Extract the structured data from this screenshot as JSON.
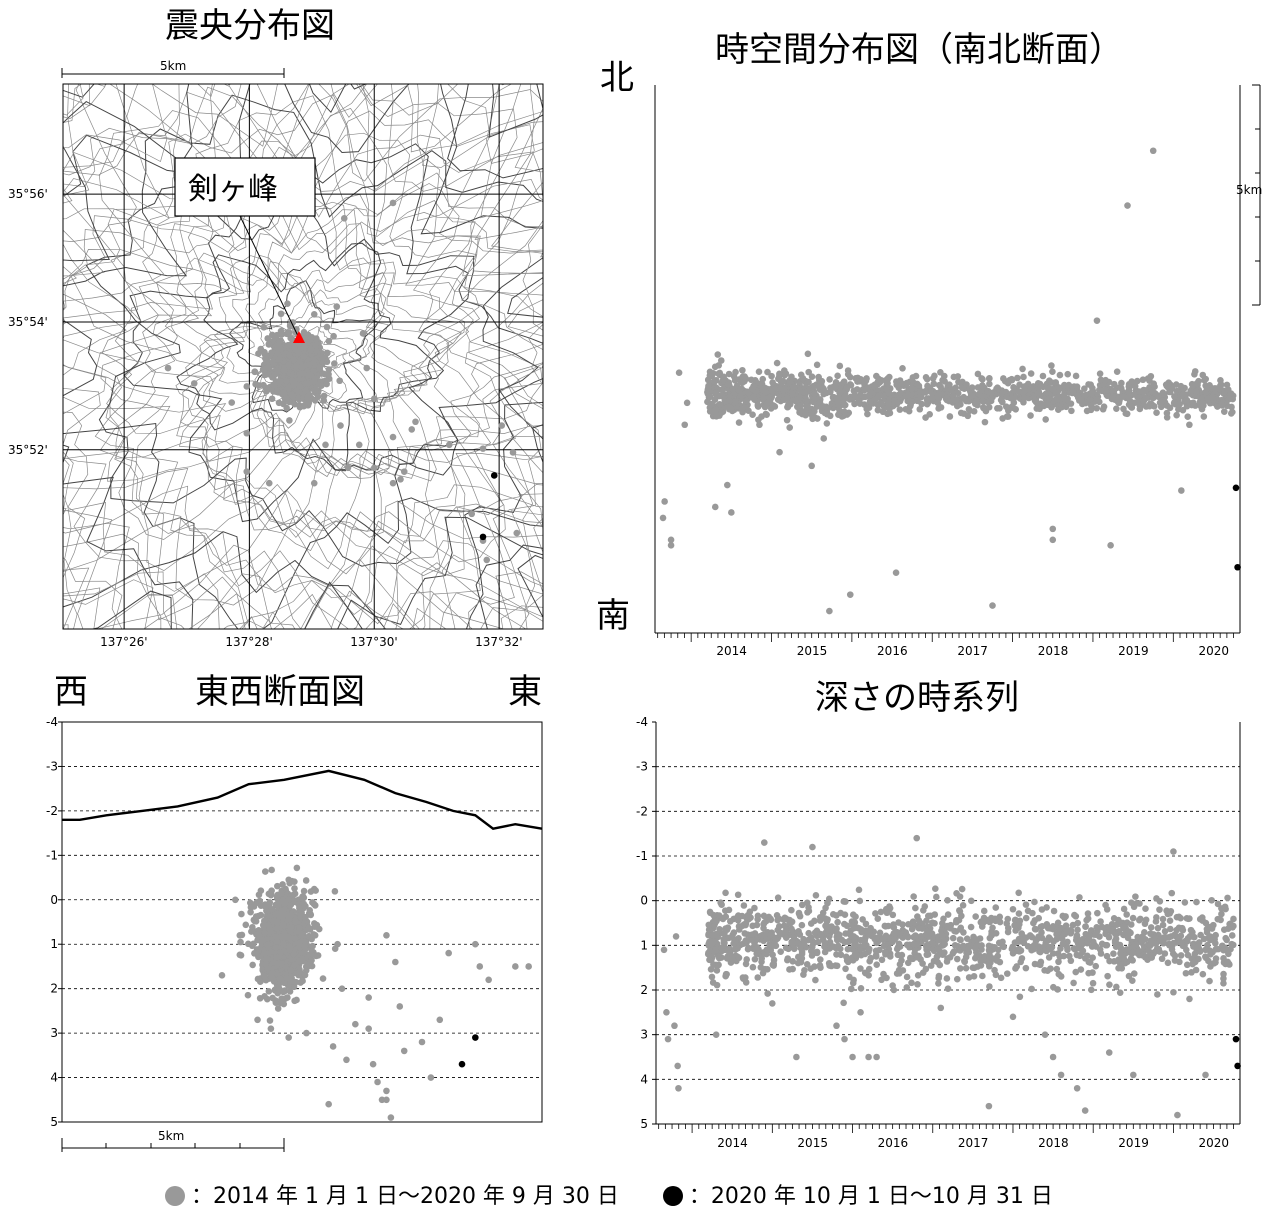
{
  "colors": {
    "gray_point": "#999999",
    "black_point": "#000000",
    "summit_marker": "#ff0000",
    "axis": "#000000"
  },
  "titles": {
    "map": "震央分布図",
    "timespace": "時空間分布図（南北断面）",
    "ew_section": "東西断面図",
    "depth_time": "深さの時系列"
  },
  "labels": {
    "north": "北",
    "south": "南",
    "west": "西",
    "east": "東",
    "summit": "剣ヶ峰",
    "scale": "5km"
  },
  "legend": {
    "gray_icon": "gray-circle",
    "gray_text": "：2014 年 1 月 1 日～2020 年 9 月 30 日",
    "black_icon": "black-circle",
    "black_text": "：2020 年 10 月 1 日～10 月 31 日"
  },
  "chart_data": [
    {
      "type": "scatter",
      "title": "震央分布図",
      "x_ticks": [
        "137°26'",
        "137°28'",
        "137°30'",
        "137°32'"
      ],
      "y_ticks": [
        "35°56'",
        "35°54'",
        "35°52'"
      ],
      "x_range": [
        137.417,
        137.545
      ],
      "y_range": [
        35.82,
        35.962
      ],
      "summit": {
        "label": "剣ヶ峰",
        "lon": 137.481,
        "lat": 35.892
      },
      "series": [
        {
          "name": "2014年1月1日～2020年9月30日",
          "cluster_center": [
            137.479,
            35.888
          ],
          "points": [
            [
              137.445,
              35.888
            ],
            [
              137.452,
              35.884
            ],
            [
              137.462,
              35.879
            ],
            [
              137.466,
              35.871
            ],
            [
              137.466,
              35.861
            ],
            [
              137.472,
              35.858
            ],
            [
              137.484,
              35.858
            ],
            [
              137.487,
              35.868
            ],
            [
              137.491,
              35.873
            ],
            [
              137.496,
              35.868
            ],
            [
              137.5,
              35.862
            ],
            [
              137.505,
              35.87
            ],
            [
              137.5,
              35.88
            ],
            [
              137.498,
              35.888
            ],
            [
              137.497,
              35.897
            ],
            [
              137.49,
              35.904
            ],
            [
              137.484,
              35.902
            ],
            [
              137.492,
              35.927
            ],
            [
              137.505,
              35.931
            ],
            [
              137.493,
              35.862
            ],
            [
              137.505,
              35.858
            ],
            [
              137.508,
              35.861
            ],
            [
              137.51,
              35.872
            ],
            [
              137.52,
              35.868
            ],
            [
              137.534,
              35.873
            ],
            [
              137.537,
              35.866
            ],
            [
              137.529,
              35.867
            ],
            [
              137.526,
              35.85
            ],
            [
              137.529,
              35.843
            ],
            [
              137.538,
              35.845
            ],
            [
              137.53,
              35.838
            ],
            [
              137.511,
              35.874
            ],
            [
              137.507,
              35.859
            ]
          ]
        },
        {
          "name": "2020年10月1日～10月31日",
          "points": [
            [
              137.532,
              35.86
            ],
            [
              137.529,
              35.844
            ]
          ]
        }
      ]
    },
    {
      "type": "scatter",
      "title": "時空間分布図（南北断面）",
      "x_ticks": [
        "2014",
        "2015",
        "2016",
        "2017",
        "2018",
        "2019",
        "2020"
      ],
      "x_range": [
        2013.55,
        2020.83
      ],
      "ylabel_top": "北",
      "ylabel_bottom": "南",
      "series": [
        {
          "name": "2014年1月1日～2020年9月30日",
          "main_band": {
            "x": [
              2014.2,
              2020.75
            ],
            "y_center": 0.565
          },
          "points": [
            [
              2013.85,
              0.525
            ],
            [
              2013.95,
              0.58
            ],
            [
              2013.92,
              0.62
            ],
            [
              2013.65,
              0.79
            ],
            [
              2013.67,
              0.76
            ],
            [
              2013.75,
              0.84
            ],
            [
              2013.75,
              0.83
            ],
            [
              2014.3,
              0.77
            ],
            [
              2014.45,
              0.73
            ],
            [
              2014.5,
              0.78
            ],
            [
              2014.85,
              0.62
            ],
            [
              2015.1,
              0.67
            ],
            [
              2015.5,
              0.695
            ],
            [
              2015.65,
              0.645
            ],
            [
              2015.72,
              0.96
            ],
            [
              2015.98,
              0.93
            ],
            [
              2016.55,
              0.89
            ],
            [
              2017.75,
              0.95
            ],
            [
              2018.5,
              0.81
            ],
            [
              2018.5,
              0.83
            ],
            [
              2019.22,
              0.84
            ],
            [
              2019.05,
              0.43
            ],
            [
              2019.75,
              0.12
            ],
            [
              2019.43,
              0.22
            ],
            [
              2020.1,
              0.74
            ],
            [
              2020.2,
              0.62
            ],
            [
              2020.25,
              0.58
            ],
            [
              2020.38,
              0.605
            ]
          ]
        },
        {
          "name": "2020年10月1日～10月31日",
          "points": [
            [
              2020.78,
              0.735
            ],
            [
              2020.8,
              0.88
            ]
          ]
        }
      ]
    },
    {
      "type": "scatter",
      "title": "東西断面図",
      "y_ticks": [
        "-4",
        "-3",
        "-2",
        "-1",
        "0",
        "1",
        "2",
        "3",
        "4",
        "5"
      ],
      "y_range": [
        -4,
        5
      ],
      "x_range_km": [
        0,
        10.8
      ],
      "topography_elevation_km": [
        [
          0,
          -1.8
        ],
        [
          0.4,
          -1.8
        ],
        [
          1.0,
          -1.9
        ],
        [
          1.8,
          -2.0
        ],
        [
          2.6,
          -2.1
        ],
        [
          3.5,
          -2.3
        ],
        [
          4.2,
          -2.6
        ],
        [
          5.0,
          -2.7
        ],
        [
          6.0,
          -2.9
        ],
        [
          6.8,
          -2.7
        ],
        [
          7.5,
          -2.4
        ],
        [
          8.2,
          -2.2
        ],
        [
          8.8,
          -2.0
        ],
        [
          9.3,
          -1.9
        ],
        [
          9.7,
          -1.6
        ],
        [
          10.2,
          -1.7
        ],
        [
          10.8,
          -1.6
        ]
      ],
      "series": [
        {
          "name": "2014年1月1日～2020年9月30日",
          "cluster_center": [
            5.0,
            0.9
          ],
          "points": [
            [
              3.6,
              1.7
            ],
            [
              3.9,
              0.0
            ],
            [
              4.0,
              0.8
            ],
            [
              4.4,
              2.7
            ],
            [
              4.7,
              2.9
            ],
            [
              5.1,
              3.1
            ],
            [
              5.5,
              3.0
            ],
            [
              6.2,
              1.0
            ],
            [
              6.3,
              2.0
            ],
            [
              6.1,
              3.3
            ],
            [
              6.4,
              3.6
            ],
            [
              6.6,
              2.8
            ],
            [
              6.9,
              2.9
            ],
            [
              6.9,
              2.2
            ],
            [
              7.3,
              0.8
            ],
            [
              7.1,
              4.1
            ],
            [
              7.2,
              4.5
            ],
            [
              7.3,
              4.5
            ],
            [
              7.5,
              1.4
            ],
            [
              7.6,
              2.4
            ],
            [
              7.7,
              3.4
            ],
            [
              8.1,
              3.2
            ],
            [
              8.3,
              4.0
            ],
            [
              8.5,
              2.7
            ],
            [
              8.7,
              1.2
            ],
            [
              9.3,
              1.0
            ],
            [
              9.4,
              1.5
            ],
            [
              9.6,
              1.8
            ],
            [
              10.2,
              1.5
            ],
            [
              10.5,
              1.5
            ],
            [
              6.0,
              4.6
            ],
            [
              7.0,
              3.7
            ],
            [
              7.3,
              4.3
            ],
            [
              7.4,
              4.9
            ]
          ]
        },
        {
          "name": "2020年10月1日～10月31日",
          "points": [
            [
              9.3,
              3.1
            ],
            [
              9.0,
              3.7
            ]
          ]
        }
      ]
    },
    {
      "type": "scatter",
      "title": "深さの時系列",
      "x_ticks": [
        "2014",
        "2015",
        "2016",
        "2017",
        "2018",
        "2019",
        "2020"
      ],
      "y_ticks": [
        "-4",
        "-3",
        "-2",
        "-1",
        "0",
        "1",
        "2",
        "3",
        "4",
        "5"
      ],
      "x_range": [
        2013.55,
        2020.83
      ],
      "y_range": [
        -4,
        5
      ],
      "series": [
        {
          "name": "2014年1月1日～2020年9月30日",
          "main_band": {
            "x": [
              2014.2,
              2020.75
            ],
            "y_center": 0.9
          },
          "points": [
            [
              2013.65,
              1.1
            ],
            [
              2013.68,
              2.5
            ],
            [
              2013.7,
              3.1
            ],
            [
              2013.78,
              2.8
            ],
            [
              2013.82,
              3.7
            ],
            [
              2013.83,
              4.2
            ],
            [
              2013.8,
              0.8
            ],
            [
              2014.3,
              3.0
            ],
            [
              2014.5,
              1.3
            ],
            [
              2014.9,
              -1.3
            ],
            [
              2015.0,
              2.3
            ],
            [
              2015.3,
              3.5
            ],
            [
              2015.5,
              -1.2
            ],
            [
              2015.6,
              1.5
            ],
            [
              2015.8,
              2.8
            ],
            [
              2015.9,
              3.1
            ],
            [
              2016.0,
              3.5
            ],
            [
              2016.1,
              2.5
            ],
            [
              2016.2,
              3.5
            ],
            [
              2016.3,
              3.5
            ],
            [
              2016.5,
              1.9
            ],
            [
              2016.8,
              -1.4
            ],
            [
              2017.1,
              2.4
            ],
            [
              2017.5,
              1.5
            ],
            [
              2017.7,
              4.6
            ],
            [
              2018.0,
              2.6
            ],
            [
              2018.4,
              3.0
            ],
            [
              2018.5,
              3.5
            ],
            [
              2018.6,
              3.9
            ],
            [
              2018.8,
              4.2
            ],
            [
              2018.9,
              4.7
            ],
            [
              2019.2,
              3.4
            ],
            [
              2019.5,
              3.9
            ],
            [
              2019.8,
              2.1
            ],
            [
              2020.0,
              -1.1
            ],
            [
              2020.05,
              4.8
            ],
            [
              2020.2,
              2.2
            ],
            [
              2020.4,
              3.9
            ],
            [
              2020.45,
              1.8
            ]
          ]
        },
        {
          "name": "2020年10月1日～10月31日",
          "points": [
            [
              2020.78,
              3.1
            ],
            [
              2020.8,
              3.7
            ]
          ]
        }
      ]
    }
  ]
}
